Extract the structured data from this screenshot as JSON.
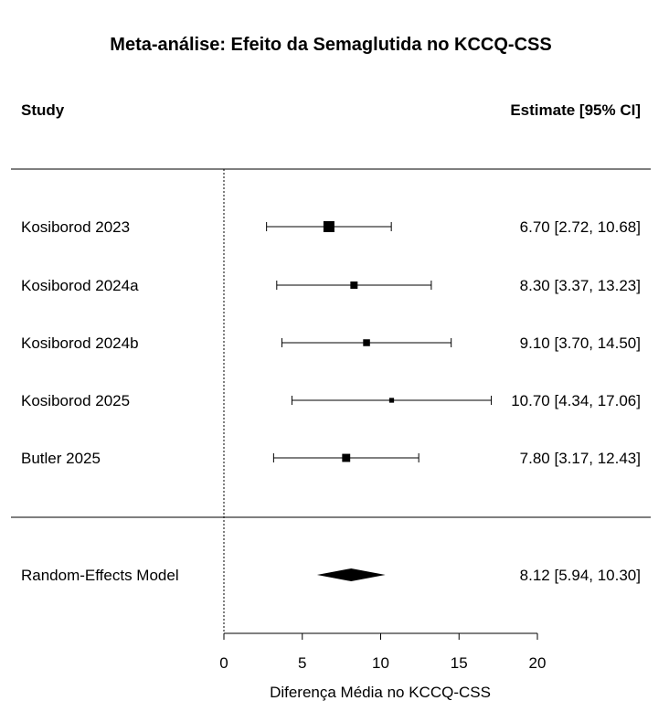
{
  "chart_data": {
    "type": "forest",
    "title": "Meta-análise: Efeito da Semaglutida no KCCQ-CSS",
    "header_study": "Study",
    "header_estimate": "Estimate [95% CI]",
    "xlabel": "Diferença Média no KCCQ-CSS",
    "xlim": [
      0,
      20
    ],
    "xticks": [
      "0",
      "5",
      "10",
      "15",
      "20"
    ],
    "reference_line": 0,
    "studies": [
      {
        "name": "Kosiborod 2023",
        "estimate": 6.7,
        "lower": 2.72,
        "upper": 10.68,
        "weight": 1.0,
        "text": "6.70 [2.72, 10.68]"
      },
      {
        "name": "Kosiborod 2024a",
        "estimate": 8.3,
        "lower": 3.37,
        "upper": 13.23,
        "weight": 0.55,
        "text": "8.30 [3.37, 13.23]"
      },
      {
        "name": "Kosiborod 2024b",
        "estimate": 9.1,
        "lower": 3.7,
        "upper": 14.5,
        "weight": 0.5,
        "text": "9.10 [3.70, 14.50]"
      },
      {
        "name": "Kosiborod 2025",
        "estimate": 10.7,
        "lower": 4.34,
        "upper": 17.06,
        "weight": 0.25,
        "text": "10.70 [4.34, 17.06]"
      },
      {
        "name": "Butler 2025",
        "estimate": 7.8,
        "lower": 3.17,
        "upper": 12.43,
        "weight": 0.65,
        "text": "7.80 [3.17, 12.43]"
      }
    ],
    "summary": {
      "name": "Random-Effects Model",
      "estimate": 8.12,
      "lower": 5.94,
      "upper": 10.3,
      "text": "8.12 [5.94, 10.30]"
    }
  }
}
